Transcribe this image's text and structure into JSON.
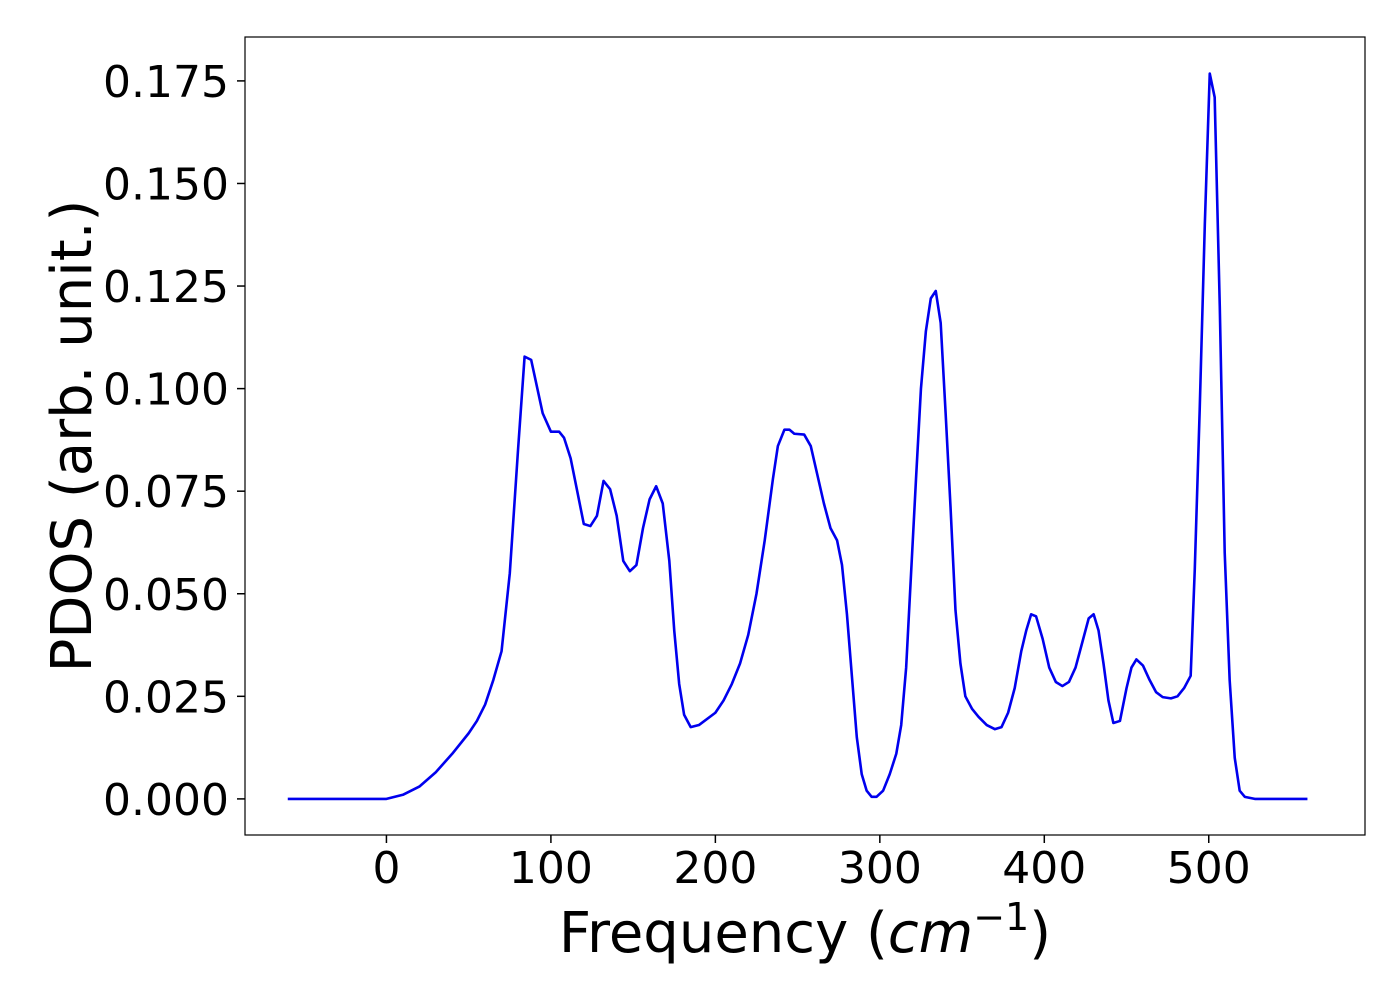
{
  "chart_data": {
    "type": "line",
    "ylabel": "PDOS (arb. unit.)",
    "xlabel": [
      "Frequency (",
      "cm",
      "−1",
      ")"
    ],
    "x": [
      -60,
      -40,
      -20,
      0,
      10,
      20,
      30,
      40,
      50,
      55,
      60,
      65,
      70,
      75,
      80,
      84,
      88,
      95,
      100,
      105,
      108,
      112,
      116,
      120,
      124,
      128,
      132,
      136,
      140,
      144,
      148,
      152,
      156,
      160,
      164,
      168,
      172,
      175,
      178,
      181,
      185,
      190,
      200,
      205,
      210,
      215,
      220,
      225,
      230,
      235,
      238,
      242,
      245,
      248,
      254,
      258,
      262,
      266,
      270,
      274,
      277,
      280,
      283,
      286,
      289,
      292,
      295,
      298,
      302,
      306,
      310,
      313,
      316,
      319,
      322,
      325,
      328,
      331,
      334,
      337,
      340,
      343,
      346,
      349,
      352,
      356,
      360,
      365,
      370,
      374,
      378,
      382,
      386,
      389,
      392,
      395,
      399,
      403,
      407,
      411,
      415,
      419,
      423,
      427,
      430,
      433,
      436,
      439,
      442,
      446,
      450,
      453,
      456,
      460,
      464,
      468,
      472,
      477,
      481,
      485,
      489,
      491.5,
      494.5,
      497.6,
      500.6,
      503.6,
      506.7,
      509.7,
      512.7,
      515.8,
      518.8,
      521.9,
      528,
      540,
      560
    ],
    "series": [
      {
        "color": "#0000ee",
        "values": [
          0,
          0,
          0,
          0,
          0.001,
          0.003,
          0.0065,
          0.011,
          0.016,
          0.019,
          0.023,
          0.029,
          0.036,
          0.055,
          0.085,
          0.1078,
          0.107,
          0.094,
          0.0895,
          0.0895,
          0.088,
          0.083,
          0.075,
          0.067,
          0.0665,
          0.069,
          0.0775,
          0.0755,
          0.069,
          0.058,
          0.0555,
          0.057,
          0.066,
          0.073,
          0.0762,
          0.072,
          0.058,
          0.041,
          0.028,
          0.0205,
          0.0175,
          0.018,
          0.021,
          0.024,
          0.028,
          0.033,
          0.04,
          0.05,
          0.063,
          0.078,
          0.086,
          0.09,
          0.09,
          0.089,
          0.0888,
          0.086,
          0.079,
          0.072,
          0.066,
          0.063,
          0.057,
          0.045,
          0.03,
          0.015,
          0.006,
          0.002,
          0.0005,
          0.0005,
          0.002,
          0.006,
          0.011,
          0.018,
          0.032,
          0.055,
          0.078,
          0.1,
          0.114,
          0.122,
          0.1238,
          0.116,
          0.094,
          0.071,
          0.046,
          0.033,
          0.025,
          0.022,
          0.02,
          0.018,
          0.017,
          0.0175,
          0.021,
          0.027,
          0.036,
          0.041,
          0.045,
          0.0445,
          0.039,
          0.032,
          0.0285,
          0.0275,
          0.0285,
          0.032,
          0.038,
          0.044,
          0.045,
          0.041,
          0.033,
          0.024,
          0.0185,
          0.019,
          0.027,
          0.032,
          0.034,
          0.0325,
          0.029,
          0.026,
          0.0248,
          0.0245,
          0.025,
          0.027,
          0.03,
          0.056,
          0.095,
          0.14,
          0.1768,
          0.171,
          0.12,
          0.06,
          0.029,
          0.01,
          0.002,
          0.0005,
          0,
          0,
          0
        ]
      }
    ],
    "xlim": [
      -86,
      595
    ],
    "ylim": [
      -0.0088,
      0.1857
    ],
    "xticks": [
      0,
      100,
      200,
      300,
      400,
      500
    ],
    "yticks": [
      {
        "value": 0,
        "label": "0.000"
      },
      {
        "value": 0.025,
        "label": "0.025"
      },
      {
        "value": 0.05,
        "label": "0.050"
      },
      {
        "value": 0.075,
        "label": "0.075"
      },
      {
        "value": 0.1,
        "label": "0.100"
      },
      {
        "value": 0.125,
        "label": "0.125"
      },
      {
        "value": 0.15,
        "label": "0.150"
      },
      {
        "value": 0.175,
        "label": "0.175"
      }
    ],
    "grid": false
  }
}
